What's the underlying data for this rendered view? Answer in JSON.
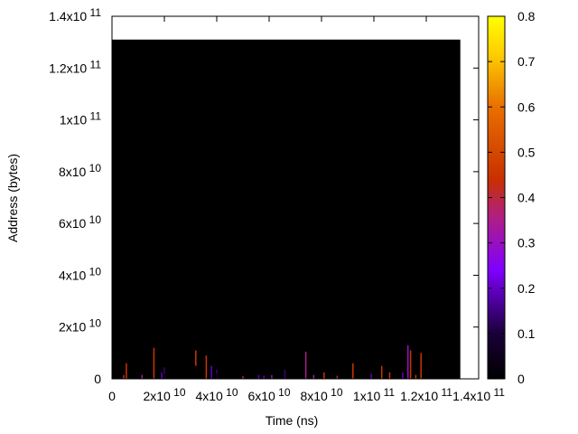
{
  "chart_data": {
    "type": "heatmap",
    "xlabel": "Time (ns)",
    "ylabel": "Address (bytes)",
    "x_ticks": [
      {
        "value": 0,
        "mant": "0",
        "exp": ""
      },
      {
        "value": 20000000000,
        "mant": "2x10",
        "exp": "10"
      },
      {
        "value": 40000000000,
        "mant": "4x10",
        "exp": "10"
      },
      {
        "value": 60000000000,
        "mant": "6x10",
        "exp": "10"
      },
      {
        "value": 80000000000,
        "mant": "8x10",
        "exp": "10"
      },
      {
        "value": 100000000000,
        "mant": "1x10",
        "exp": "11"
      },
      {
        "value": 120000000000,
        "mant": "1.2x10",
        "exp": "11"
      },
      {
        "value": 140000000000,
        "mant": "1.4x10",
        "exp": "11"
      }
    ],
    "y_ticks": [
      {
        "value": 0,
        "mant": "0",
        "exp": ""
      },
      {
        "value": 20000000000,
        "mant": "2x10",
        "exp": "10"
      },
      {
        "value": 40000000000,
        "mant": "4x10",
        "exp": "10"
      },
      {
        "value": 60000000000,
        "mant": "6x10",
        "exp": "10"
      },
      {
        "value": 80000000000,
        "mant": "8x10",
        "exp": "10"
      },
      {
        "value": 100000000000,
        "mant": "1x10",
        "exp": "11"
      },
      {
        "value": 120000000000,
        "mant": "1.2x10",
        "exp": "11"
      },
      {
        "value": 140000000000,
        "mant": "1.4x10",
        "exp": "11"
      }
    ],
    "colorbar_ticks": [
      "0",
      "0.1",
      "0.2",
      "0.3",
      "0.4",
      "0.5",
      "0.6",
      "0.7",
      "0.8"
    ],
    "colorbar_range": [
      0,
      0.8
    ],
    "xlim": [
      0,
      140000000000
    ],
    "ylim": [
      0,
      140000000000
    ],
    "grid": false,
    "palette": "black-purple-red-orange-yellow",
    "heat_region": {
      "x": [
        0,
        133000000000
      ],
      "y": [
        0,
        131000000000
      ],
      "value": 0
    },
    "hot_cells": [
      {
        "x": 4500000000,
        "y0": 0,
        "y1": 1500000000,
        "value": 0.4
      },
      {
        "x": 5500000000,
        "y0": 0,
        "y1": 6000000000,
        "value": 0.45
      },
      {
        "x": 11500000000,
        "y0": 0,
        "y1": 1500000000,
        "value": 0.35
      },
      {
        "x": 16000000000,
        "y0": 0,
        "y1": 12000000000,
        "value": 0.45
      },
      {
        "x": 19000000000,
        "y0": 0,
        "y1": 2500000000,
        "value": 0.2
      },
      {
        "x": 20000000000,
        "y0": 0,
        "y1": 4500000000,
        "value": 0.15
      },
      {
        "x": 32000000000,
        "y0": 5000000000,
        "y1": 11000000000,
        "value": 0.45
      },
      {
        "x": 36000000000,
        "y0": 0,
        "y1": 9000000000,
        "value": 0.45
      },
      {
        "x": 38000000000,
        "y0": 0,
        "y1": 5000000000,
        "value": 0.2
      },
      {
        "x": 40000000000,
        "y0": 0,
        "y1": 3500000000,
        "value": 0.15
      },
      {
        "x": 50000000000,
        "y0": 0,
        "y1": 1000000000,
        "value": 0.4
      },
      {
        "x": 56000000000,
        "y0": 0,
        "y1": 1500000000,
        "value": 0.2
      },
      {
        "x": 58000000000,
        "y0": 0,
        "y1": 1200000000,
        "value": 0.2
      },
      {
        "x": 61000000000,
        "y0": 0,
        "y1": 1500000000,
        "value": 0.3
      },
      {
        "x": 66000000000,
        "y0": 0,
        "y1": 3500000000,
        "value": 0.15
      },
      {
        "x": 74000000000,
        "y0": 0,
        "y1": 10500000000,
        "value": 0.35
      },
      {
        "x": 77000000000,
        "y0": 0,
        "y1": 1500000000,
        "value": 0.35
      },
      {
        "x": 81000000000,
        "y0": 0,
        "y1": 2500000000,
        "value": 0.45
      },
      {
        "x": 86000000000,
        "y0": 0,
        "y1": 1200000000,
        "value": 0.4
      },
      {
        "x": 92000000000,
        "y0": 0,
        "y1": 6000000000,
        "value": 0.45
      },
      {
        "x": 99000000000,
        "y0": 0,
        "y1": 2000000000,
        "value": 0.2
      },
      {
        "x": 103000000000,
        "y0": 0,
        "y1": 5000000000,
        "value": 0.45
      },
      {
        "x": 106000000000,
        "y0": 0,
        "y1": 2500000000,
        "value": 0.45
      },
      {
        "x": 111000000000,
        "y0": 0,
        "y1": 2500000000,
        "value": 0.2
      },
      {
        "x": 113000000000,
        "y0": 0,
        "y1": 13000000000,
        "value": 0.3
      },
      {
        "x": 114000000000,
        "y0": 0,
        "y1": 11000000000,
        "value": 0.45
      },
      {
        "x": 116000000000,
        "y0": 0,
        "y1": 1500000000,
        "value": 0.45
      },
      {
        "x": 118000000000,
        "y0": 0,
        "y1": 10000000000,
        "value": 0.45
      }
    ]
  }
}
